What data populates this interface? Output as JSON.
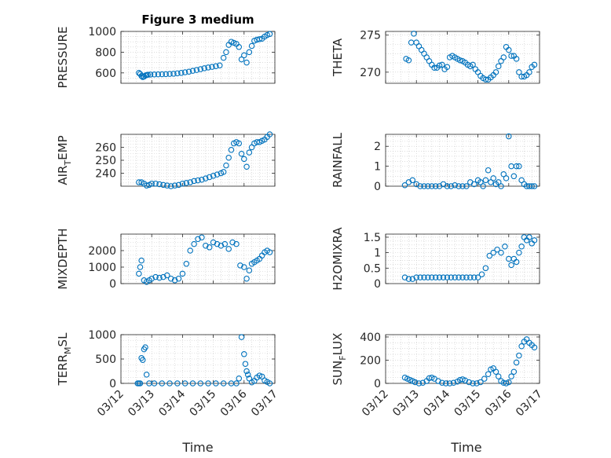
{
  "chart_data": [
    {
      "type": "scatter",
      "title": "Figure 3 medium",
      "ylabel": "PRESSURE",
      "xlim": [
        "03/12",
        "03/17"
      ],
      "ylim": [
        500,
        1000
      ],
      "yticks": [
        600,
        800,
        1000
      ],
      "color": "#0072BD",
      "series": [
        {
          "x": [
            "03/12 14:00",
            "03/12 15:00",
            "03/12 16:00",
            "03/12 17:00",
            "03/12 18:00",
            "03/12 19:00",
            "03/12 20:00",
            "03/12 21:00",
            "03/12 23:00",
            "03/13 02:00",
            "03/13 05:00",
            "03/13 08:00",
            "03/13 11:00",
            "03/13 14:00",
            "03/13 17:00",
            "03/13 20:00",
            "03/13 23:00",
            "03/14 02:00",
            "03/14 05:00",
            "03/14 08:00",
            "03/14 11:00",
            "03/14 14:00",
            "03/14 17:00",
            "03/14 20:00",
            "03/14 23:00",
            "03/15 02:00",
            "03/15 05:00",
            "03/15 08:00",
            "03/15 10:00",
            "03/15 12:00",
            "03/15 14:00",
            "03/15 16:00",
            "03/15 18:00",
            "03/15 20:00",
            "03/15 22:00",
            "03/16 00:00",
            "03/16 02:00",
            "03/16 04:00",
            "03/16 06:00",
            "03/16 08:00",
            "03/16 10:00",
            "03/16 12:00",
            "03/16 14:00",
            "03/16 16:00",
            "03/16 18:00",
            "03/16 20:00"
          ],
          "y": [
            600,
            590,
            570,
            560,
            565,
            575,
            580,
            582,
            584,
            585,
            586,
            587,
            588,
            590,
            592,
            596,
            600,
            606,
            612,
            620,
            628,
            636,
            645,
            652,
            658,
            665,
            672,
            745,
            800,
            870,
            900,
            890,
            880,
            850,
            730,
            770,
            700,
            800,
            860,
            910,
            920,
            925,
            930,
            950,
            965,
            975
          ]
        }
      ]
    },
    {
      "type": "scatter",
      "ylabel": "THETA",
      "xlim": [
        "03/12",
        "03/17"
      ],
      "ylim": [
        268.5,
        275.5
      ],
      "yticks": [
        270,
        275
      ],
      "color": "#0072BD",
      "series": [
        {
          "x": [
            "03/12 16:00",
            "03/12 18:00",
            "03/12 20:00",
            "03/12 22:00",
            "03/13 00:00",
            "03/13 02:00",
            "03/13 04:00",
            "03/13 06:00",
            "03/13 08:00",
            "03/13 10:00",
            "03/13 12:00",
            "03/13 14:00",
            "03/13 16:00",
            "03/13 18:00",
            "03/13 20:00",
            "03/13 22:00",
            "03/14 00:00",
            "03/14 02:00",
            "03/14 04:00",
            "03/14 06:00",
            "03/14 08:00",
            "03/14 10:00",
            "03/14 12:00",
            "03/14 14:00",
            "03/14 16:00",
            "03/14 18:00",
            "03/14 20:00",
            "03/14 22:00",
            "03/15 00:00",
            "03/15 02:00",
            "03/15 04:00",
            "03/15 06:00",
            "03/15 08:00",
            "03/15 10:00",
            "03/15 12:00",
            "03/15 14:00",
            "03/15 16:00",
            "03/15 18:00",
            "03/15 20:00",
            "03/15 22:00",
            "03/16 00:00",
            "03/16 02:00",
            "03/16 04:00",
            "03/16 06:00",
            "03/16 08:00",
            "03/16 10:00",
            "03/16 12:00",
            "03/16 14:00",
            "03/16 16:00",
            "03/16 18:00",
            "03/16 20:00"
          ],
          "y": [
            271.8,
            271.6,
            274.0,
            275.2,
            274.0,
            273.5,
            273.0,
            272.5,
            272.0,
            271.5,
            271.0,
            270.6,
            270.6,
            270.9,
            271.0,
            270.4,
            270.7,
            272.0,
            272.2,
            272.0,
            271.8,
            271.6,
            271.5,
            271.3,
            271.0,
            270.8,
            271.0,
            270.4,
            270.0,
            269.5,
            269.2,
            269.0,
            269.0,
            269.3,
            269.6,
            270.0,
            270.8,
            271.5,
            272.0,
            273.4,
            273.0,
            272.2,
            272.2,
            271.8,
            270.0,
            269.4,
            269.4,
            269.6,
            270.0,
            270.7,
            271.0
          ]
        }
      ]
    },
    {
      "type": "scatter",
      "ylabel": "AIR_TEMP",
      "xlim": [
        "03/12",
        "03/17"
      ],
      "ylim": [
        230,
        270
      ],
      "yticks": [
        240,
        250,
        260
      ],
      "color": "#0072BD",
      "series": [
        {
          "x": [
            "03/12 14:00",
            "03/12 16:00",
            "03/12 18:00",
            "03/12 20:00",
            "03/12 22:00",
            "03/13 00:00",
            "03/13 03:00",
            "03/13 06:00",
            "03/13 09:00",
            "03/13 12:00",
            "03/13 15:00",
            "03/13 18:00",
            "03/13 21:00",
            "03/14 00:00",
            "03/14 03:00",
            "03/14 06:00",
            "03/14 09:00",
            "03/14 12:00",
            "03/14 15:00",
            "03/14 18:00",
            "03/14 21:00",
            "03/15 00:00",
            "03/15 03:00",
            "03/15 06:00",
            "03/15 08:00",
            "03/15 10:00",
            "03/15 12:00",
            "03/15 14:00",
            "03/15 16:00",
            "03/15 18:00",
            "03/15 20:00",
            "03/15 22:00",
            "03/16 00:00",
            "03/16 02:00",
            "03/16 04:00",
            "03/16 06:00",
            "03/16 08:00",
            "03/16 10:00",
            "03/16 12:00",
            "03/16 14:00",
            "03/16 16:00",
            "03/16 18:00",
            "03/16 20:00"
          ],
          "y": [
            233,
            233,
            232,
            230.5,
            231,
            232,
            232,
            231.5,
            231,
            230.5,
            230,
            230.5,
            231,
            232,
            232.5,
            233,
            234,
            234.5,
            235,
            236,
            237,
            238,
            239,
            240,
            241,
            246,
            252,
            258,
            263,
            264,
            263,
            255,
            251,
            245,
            256,
            260,
            263,
            264,
            264,
            265,
            266,
            268,
            270
          ]
        }
      ]
    },
    {
      "type": "scatter",
      "ylabel": "RAINFALL",
      "xlim": [
        "03/12",
        "03/17"
      ],
      "ylim": [
        0,
        2.6
      ],
      "yticks": [
        0,
        1,
        2
      ],
      "color": "#0072BD",
      "series": [
        {
          "x": [
            "03/12 15:00",
            "03/12 18:00",
            "03/12 21:00",
            "03/13 00:00",
            "03/13 03:00",
            "03/13 06:00",
            "03/13 09:00",
            "03/13 12:00",
            "03/13 15:00",
            "03/13 18:00",
            "03/13 21:00",
            "03/14 00:00",
            "03/14 03:00",
            "03/14 06:00",
            "03/14 09:00",
            "03/14 12:00",
            "03/14 15:00",
            "03/14 18:00",
            "03/14 21:00",
            "03/15 00:00",
            "03/15 02:00",
            "03/15 04:00",
            "03/15 06:00",
            "03/15 08:00",
            "03/15 10:00",
            "03/15 12:00",
            "03/15 14:00",
            "03/15 16:00",
            "03/15 18:00",
            "03/15 20:00",
            "03/15 22:00",
            "03/16 00:00",
            "03/16 02:00",
            "03/16 04:00",
            "03/16 06:00",
            "03/16 08:00",
            "03/16 10:00",
            "03/16 12:00",
            "03/16 14:00",
            "03/16 16:00",
            "03/16 18:00",
            "03/16 20:00"
          ],
          "y": [
            0.05,
            0.2,
            0.3,
            0.1,
            0,
            0,
            0,
            0,
            0,
            0,
            0.1,
            0,
            0,
            0.05,
            0,
            0,
            0,
            0.2,
            0.1,
            0.3,
            0.2,
            0,
            0.3,
            0.8,
            0.2,
            0.4,
            0.1,
            0.2,
            0,
            0.6,
            0.4,
            2.5,
            1.0,
            0.5,
            1.0,
            1.0,
            0.3,
            0.1,
            0,
            0,
            0,
            0
          ]
        }
      ]
    },
    {
      "type": "scatter",
      "ylabel": "MIXDEPTH",
      "xlim": [
        "03/12",
        "03/17"
      ],
      "ylim": [
        0,
        3000
      ],
      "yticks": [
        0,
        1000,
        2000
      ],
      "color": "#0072BD",
      "series": [
        {
          "x": [
            "03/12 14:00",
            "03/12 15:00",
            "03/12 16:00",
            "03/12 18:00",
            "03/12 20:00",
            "03/12 22:00",
            "03/13 00:00",
            "03/13 03:00",
            "03/13 06:00",
            "03/13 09:00",
            "03/13 12:00",
            "03/13 15:00",
            "03/13 18:00",
            "03/13 21:00",
            "03/14 00:00",
            "03/14 03:00",
            "03/14 06:00",
            "03/14 09:00",
            "03/14 12:00",
            "03/14 15:00",
            "03/14 18:00",
            "03/14 21:00",
            "03/15 00:00",
            "03/15 03:00",
            "03/15 06:00",
            "03/15 09:00",
            "03/15 12:00",
            "03/15 15:00",
            "03/15 18:00",
            "03/15 21:00",
            "03/16 00:00",
            "03/16 02:00",
            "03/16 04:00",
            "03/16 06:00",
            "03/16 08:00",
            "03/16 10:00",
            "03/16 12:00",
            "03/16 14:00",
            "03/16 16:00",
            "03/16 18:00",
            "03/16 20:00"
          ],
          "y": [
            600,
            1000,
            1400,
            200,
            100,
            200,
            300,
            400,
            350,
            400,
            500,
            300,
            200,
            300,
            600,
            1200,
            2000,
            2400,
            2700,
            2800,
            2300,
            2200,
            2500,
            2400,
            2300,
            2400,
            2100,
            2500,
            2400,
            1100,
            1000,
            300,
            800,
            1200,
            1300,
            1400,
            1500,
            1700,
            1900,
            2000,
            1900
          ]
        }
      ]
    },
    {
      "type": "scatter",
      "ylabel": "H2OMIXRA",
      "xlim": [
        "03/12",
        "03/17"
      ],
      "ylim": [
        0,
        1.6
      ],
      "yticks": [
        0,
        0.5,
        1,
        1.5
      ],
      "color": "#0072BD",
      "series": [
        {
          "x": [
            "03/12 15:00",
            "03/12 18:00",
            "03/12 21:00",
            "03/13 00:00",
            "03/13 03:00",
            "03/13 06:00",
            "03/13 09:00",
            "03/13 12:00",
            "03/13 15:00",
            "03/13 18:00",
            "03/13 21:00",
            "03/14 00:00",
            "03/14 03:00",
            "03/14 06:00",
            "03/14 09:00",
            "03/14 12:00",
            "03/14 15:00",
            "03/14 18:00",
            "03/14 21:00",
            "03/15 00:00",
            "03/15 03:00",
            "03/15 06:00",
            "03/15 09:00",
            "03/15 12:00",
            "03/15 15:00",
            "03/15 18:00",
            "03/15 21:00",
            "03/16 00:00",
            "03/16 02:00",
            "03/16 04:00",
            "03/16 06:00",
            "03/16 08:00",
            "03/16 10:00",
            "03/16 12:00",
            "03/16 14:00",
            "03/16 16:00",
            "03/16 18:00",
            "03/16 20:00"
          ],
          "y": [
            0.2,
            0.15,
            0.15,
            0.2,
            0.2,
            0.2,
            0.2,
            0.2,
            0.2,
            0.2,
            0.2,
            0.2,
            0.2,
            0.2,
            0.2,
            0.2,
            0.2,
            0.2,
            0.2,
            0.2,
            0.3,
            0.5,
            0.9,
            1.0,
            1.1,
            1.0,
            1.2,
            0.8,
            0.6,
            0.8,
            0.7,
            1.0,
            1.2,
            1.5,
            1.4,
            1.5,
            1.3,
            1.4
          ]
        }
      ]
    },
    {
      "type": "scatter",
      "ylabel": "TERR_MSL",
      "xlim": [
        "03/12",
        "03/17"
      ],
      "ylim": [
        0,
        1000
      ],
      "yticks": [
        0,
        500,
        1000
      ],
      "xticklabels": [
        "03/12",
        "03/13",
        "03/14",
        "03/15",
        "03/16",
        "03/17"
      ],
      "xlabel": "Time",
      "color": "#0072BD",
      "series": [
        {
          "x": [
            "03/12 13:00",
            "03/12 14:00",
            "03/12 15:00",
            "03/12 16:00",
            "03/12 17:00",
            "03/12 18:00",
            "03/12 19:00",
            "03/12 20:00",
            "03/12 22:00",
            "03/13 02:00",
            "03/13 08:00",
            "03/13 14:00",
            "03/13 20:00",
            "03/14 02:00",
            "03/14 08:00",
            "03/14 14:00",
            "03/14 20:00",
            "03/15 02:00",
            "03/15 08:00",
            "03/15 14:00",
            "03/15 18:00",
            "03/15 20:00",
            "03/15 22:00",
            "03/16 00:00",
            "03/16 01:00",
            "03/16 02:00",
            "03/16 03:00",
            "03/16 04:00",
            "03/16 06:00",
            "03/16 08:00",
            "03/16 10:00",
            "03/16 12:00",
            "03/16 14:00",
            "03/16 16:00",
            "03/16 18:00",
            "03/16 20:00"
          ],
          "y": [
            0,
            0,
            0,
            520,
            480,
            700,
            740,
            180,
            0,
            0,
            0,
            0,
            0,
            0,
            0,
            0,
            0,
            0,
            0,
            0,
            0,
            100,
            950,
            600,
            400,
            250,
            180,
            100,
            20,
            50,
            120,
            160,
            140,
            60,
            30,
            0
          ]
        }
      ]
    },
    {
      "type": "scatter",
      "ylabel": "SUN_FLUX",
      "xlim": [
        "03/12",
        "03/17"
      ],
      "ylim": [
        0,
        420
      ],
      "yticks": [
        0,
        200,
        400
      ],
      "xticklabels": [
        "03/12",
        "03/13",
        "03/14",
        "03/15",
        "03/16",
        "03/17"
      ],
      "xlabel": "Time",
      "color": "#0072BD",
      "series": [
        {
          "x": [
            "03/12 15:00",
            "03/12 17:00",
            "03/12 19:00",
            "03/12 21:00",
            "03/12 23:00",
            "03/13 02:00",
            "03/13 05:00",
            "03/13 08:00",
            "03/13 10:00",
            "03/13 12:00",
            "03/13 14:00",
            "03/13 17:00",
            "03/13 20:00",
            "03/13 23:00",
            "03/14 02:00",
            "03/14 05:00",
            "03/14 08:00",
            "03/14 10:00",
            "03/14 12:00",
            "03/14 14:00",
            "03/14 17:00",
            "03/14 20:00",
            "03/14 23:00",
            "03/15 02:00",
            "03/15 05:00",
            "03/15 08:00",
            "03/15 10:00",
            "03/15 12:00",
            "03/15 14:00",
            "03/15 16:00",
            "03/15 18:00",
            "03/15 20:00",
            "03/15 22:00",
            "03/16 00:00",
            "03/16 02:00",
            "03/16 04:00",
            "03/16 06:00",
            "03/16 08:00",
            "03/16 10:00",
            "03/16 12:00",
            "03/16 14:00",
            "03/16 16:00",
            "03/16 18:00",
            "03/16 20:00"
          ],
          "y": [
            50,
            40,
            30,
            20,
            10,
            0,
            5,
            20,
            45,
            50,
            40,
            20,
            5,
            0,
            0,
            5,
            15,
            30,
            35,
            25,
            10,
            0,
            0,
            10,
            40,
            80,
            120,
            130,
            100,
            60,
            20,
            5,
            0,
            10,
            60,
            100,
            180,
            240,
            320,
            360,
            380,
            350,
            330,
            310
          ]
        }
      ]
    }
  ],
  "labels": {
    "title": "Figure 3 medium",
    "xlabel_left": "Time",
    "xlabel_right": "Time",
    "ylabels": [
      "PRESSURE",
      "THETA",
      "AIR_TEMP",
      "RAINFALL",
      "MIXDEPTH",
      "H2OMIXRA",
      "TERR_MSL",
      "SUN_FLUX"
    ]
  }
}
